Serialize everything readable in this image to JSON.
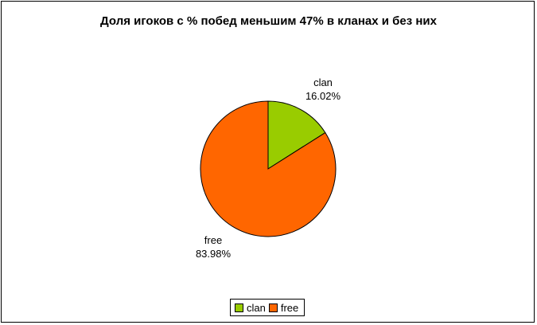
{
  "chart_data": {
    "type": "pie",
    "title": "Доля игоков с % побед меньшим 47% в кланах и без них",
    "slices": [
      {
        "name": "clan",
        "value": 16.02,
        "label": "16.02%",
        "color": "#99cc00"
      },
      {
        "name": "free",
        "value": 83.98,
        "label": "83.98%",
        "color": "#ff6600"
      }
    ],
    "legend": {
      "placement": "bottom",
      "items": [
        "clan",
        "free"
      ]
    }
  }
}
